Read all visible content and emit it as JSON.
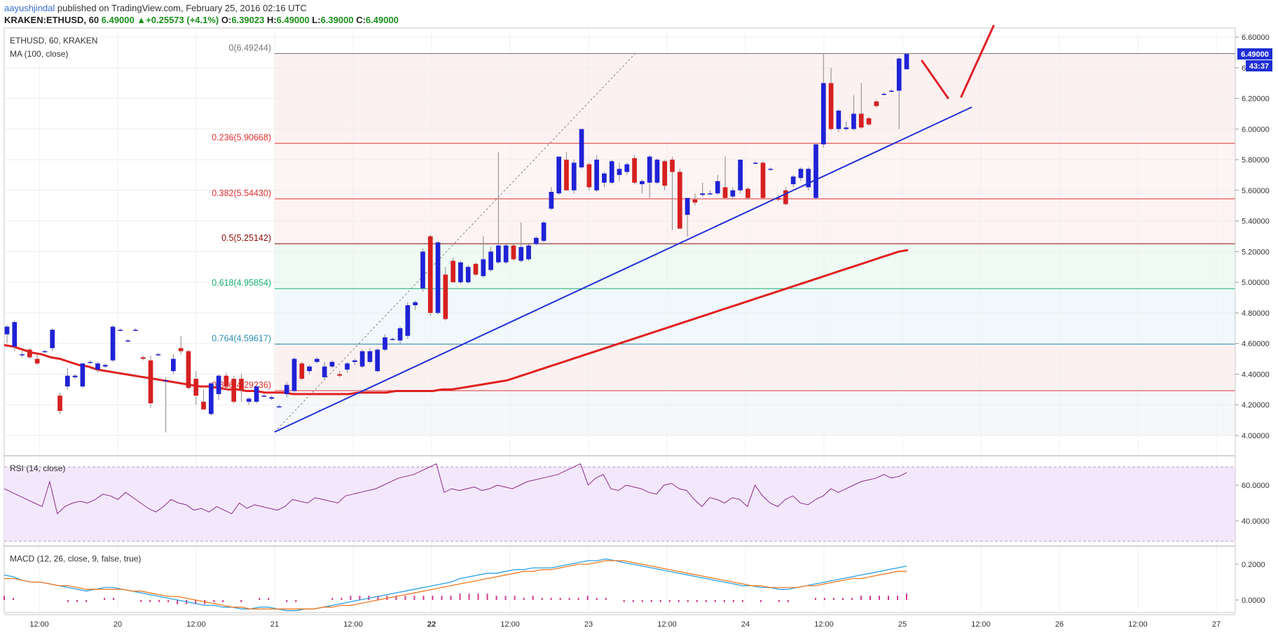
{
  "header": {
    "user": "aayushjindal",
    "published": "published on TradingView.com, February 25, 2016 02:16 UTC",
    "symbol": "KRAKEN:ETHUSD, 60",
    "change": "6.49000 ▲+0.25573 (+4.1%)",
    "ohlc_o_label": "O:",
    "ohlc_o": "6.39023",
    "ohlc_h_label": "H:",
    "ohlc_h": "6.49000",
    "ohlc_l_label": "L:",
    "ohlc_l": "6.39000",
    "ohlc_c_label": "C:",
    "ohlc_c": "6.49000"
  },
  "panes": {
    "main_title": "ETHUSD, 60, KRAKEN",
    "ma_title": "MA (100, close)",
    "rsi_title": "RSI (14, close)",
    "macd_title": "MACD (12, 26, close, 9, false, true)"
  },
  "price_badge": "6.49000",
  "time_badge": "43:37",
  "colors": {
    "up": "#1f22d6",
    "down": "#d62020",
    "ma": "#e02020",
    "trendline": "#1f2fd6",
    "rsi": "#8a2a8a",
    "macd": "#2aa0e8",
    "signal": "#f07820",
    "hist": "#d43a8e"
  },
  "chart_data": {
    "type": "candlestick",
    "price_axis_ticks": [
      "6.60000",
      "6.40000",
      "6.20000",
      "6.00000",
      "5.80000",
      "5.60000",
      "5.40000",
      "5.20000",
      "5.00000",
      "4.80000",
      "4.60000",
      "4.40000",
      "4.20000",
      "4.00000"
    ],
    "rsi_axis_ticks": [
      "60.0000",
      "40.0000"
    ],
    "macd_axis_ticks": [
      "0.2000",
      "0.0000"
    ],
    "time_axis_labels": [
      "12:00",
      "20",
      "12:00",
      "21",
      "12:00",
      "22",
      "12:00",
      "23",
      "12:00",
      "24",
      "12:00",
      "25",
      "12:00",
      "26",
      "12:00",
      "27"
    ],
    "fib_levels": [
      {
        "label": "0(6.49244)",
        "value": 6.49244,
        "color": "#777777"
      },
      {
        "label": "0.236(5.90668)",
        "value": 5.90668,
        "color": "#e03030"
      },
      {
        "label": "0.382(5.54430)",
        "value": 5.5443,
        "color": "#e03030"
      },
      {
        "label": "0.5(5.25142)",
        "value": 5.25142,
        "color": "#8a0a0a"
      },
      {
        "label": "0.618(4.95854)",
        "value": 4.95854,
        "color": "#18b070"
      },
      {
        "label": "0.764(4.59617)",
        "value": 4.59617,
        "color": "#2a8fb0"
      },
      {
        "label": "0.886(4.29236)",
        "value": 4.29236,
        "color": "#e03030"
      }
    ],
    "candles": [
      {
        "o": 4.66,
        "h": 4.72,
        "l": 4.6,
        "c": 4.71
      },
      {
        "o": 4.58,
        "h": 4.75,
        "l": 4.55,
        "c": 4.74
      },
      {
        "o": 4.53,
        "h": 4.56,
        "l": 4.51,
        "c": 4.53
      },
      {
        "o": 4.56,
        "h": 4.57,
        "l": 4.5,
        "c": 4.51
      },
      {
        "o": 4.5,
        "h": 4.53,
        "l": 4.46,
        "c": 4.47
      },
      {
        "o": 4.55,
        "h": 4.56,
        "l": 4.54,
        "c": 4.55
      },
      {
        "o": 4.57,
        "h": 4.7,
        "l": 4.55,
        "c": 4.69
      },
      {
        "o": 4.26,
        "h": 4.28,
        "l": 4.14,
        "c": 4.16
      },
      {
        "o": 4.32,
        "h": 4.44,
        "l": 4.3,
        "c": 4.39
      },
      {
        "o": 4.38,
        "h": 4.4,
        "l": 4.37,
        "c": 4.39
      },
      {
        "o": 4.32,
        "h": 4.47,
        "l": 4.31,
        "c": 4.47
      },
      {
        "o": 4.48,
        "h": 4.49,
        "l": 4.47,
        "c": 4.48
      },
      {
        "o": 4.43,
        "h": 4.48,
        "l": 4.41,
        "c": 4.47
      },
      {
        "o": 4.45,
        "h": 4.47,
        "l": 4.44,
        "c": 4.46
      },
      {
        "o": 4.49,
        "h": 4.72,
        "l": 4.48,
        "c": 4.71
      },
      {
        "o": 4.69,
        "h": 4.7,
        "l": 4.68,
        "c": 4.69
      },
      {
        "o": 4.62,
        "h": 4.63,
        "l": 4.61,
        "c": 4.62
      },
      {
        "o": 4.69,
        "h": 4.7,
        "l": 4.68,
        "c": 4.69
      },
      {
        "o": 4.51,
        "h": 4.52,
        "l": 4.49,
        "c": 4.5
      },
      {
        "o": 4.49,
        "h": 4.52,
        "l": 4.18,
        "c": 4.21
      },
      {
        "o": 4.53,
        "h": 4.54,
        "l": 4.52,
        "c": 4.53
      },
      {
        "o": 4.36,
        "h": 4.38,
        "l": 4.02,
        "c": 4.36
      },
      {
        "o": 4.42,
        "h": 4.53,
        "l": 4.4,
        "c": 4.5
      },
      {
        "o": 4.57,
        "h": 4.65,
        "l": 4.53,
        "c": 4.55
      },
      {
        "o": 4.55,
        "h": 4.56,
        "l": 4.3,
        "c": 4.31
      },
      {
        "o": 4.37,
        "h": 4.42,
        "l": 4.2,
        "c": 4.26
      },
      {
        "o": 4.22,
        "h": 4.3,
        "l": 4.17,
        "c": 4.17
      },
      {
        "o": 4.14,
        "h": 4.35,
        "l": 4.13,
        "c": 4.34
      },
      {
        "o": 4.27,
        "h": 4.4,
        "l": 4.23,
        "c": 4.39
      },
      {
        "o": 4.39,
        "h": 4.41,
        "l": 4.3,
        "c": 4.32
      },
      {
        "o": 4.37,
        "h": 4.39,
        "l": 4.21,
        "c": 4.22
      },
      {
        "o": 4.37,
        "h": 4.4,
        "l": 4.22,
        "c": 4.3
      },
      {
        "o": 4.22,
        "h": 4.25,
        "l": 4.2,
        "c": 4.24
      },
      {
        "o": 4.22,
        "h": 4.33,
        "l": 4.21,
        "c": 4.32
      },
      {
        "o": 4.26,
        "h": 4.27,
        "l": 4.25,
        "c": 4.26
      },
      {
        "o": 4.24,
        "h": 4.26,
        "l": 4.23,
        "c": 4.25
      },
      {
        "o": 4.19,
        "h": 4.2,
        "l": 4.18,
        "c": 4.19
      },
      {
        "o": 4.27,
        "h": 4.35,
        "l": 4.25,
        "c": 4.33
      },
      {
        "o": 4.29,
        "h": 4.51,
        "l": 4.28,
        "c": 4.5
      },
      {
        "o": 4.47,
        "h": 4.48,
        "l": 4.36,
        "c": 4.37
      },
      {
        "o": 4.42,
        "h": 4.46,
        "l": 4.4,
        "c": 4.45
      },
      {
        "o": 4.48,
        "h": 4.51,
        "l": 4.47,
        "c": 4.5
      },
      {
        "o": 4.38,
        "h": 4.48,
        "l": 4.37,
        "c": 4.45
      },
      {
        "o": 4.45,
        "h": 4.49,
        "l": 4.44,
        "c": 4.48
      },
      {
        "o": 4.4,
        "h": 4.42,
        "l": 4.38,
        "c": 4.39
      },
      {
        "o": 4.43,
        "h": 4.48,
        "l": 4.41,
        "c": 4.47
      },
      {
        "o": 4.48,
        "h": 4.5,
        "l": 4.46,
        "c": 4.49
      },
      {
        "o": 4.45,
        "h": 4.56,
        "l": 4.44,
        "c": 4.55
      },
      {
        "o": 4.48,
        "h": 4.57,
        "l": 4.47,
        "c": 4.55
      },
      {
        "o": 4.42,
        "h": 4.57,
        "l": 4.41,
        "c": 4.56
      },
      {
        "o": 4.56,
        "h": 4.66,
        "l": 4.55,
        "c": 4.64
      },
      {
        "o": 4.63,
        "h": 4.64,
        "l": 4.62,
        "c": 4.63
      },
      {
        "o": 4.62,
        "h": 4.71,
        "l": 4.6,
        "c": 4.7
      },
      {
        "o": 4.65,
        "h": 4.87,
        "l": 4.63,
        "c": 4.85
      },
      {
        "o": 4.85,
        "h": 4.88,
        "l": 4.82,
        "c": 4.87
      },
      {
        "o": 4.96,
        "h": 5.22,
        "l": 4.94,
        "c": 5.2
      },
      {
        "o": 5.3,
        "h": 5.31,
        "l": 4.78,
        "c": 4.8
      },
      {
        "o": 4.8,
        "h": 5.27,
        "l": 4.79,
        "c": 5.26
      },
      {
        "o": 5.05,
        "h": 5.1,
        "l": 4.75,
        "c": 4.76
      },
      {
        "o": 5.14,
        "h": 5.16,
        "l": 5.0,
        "c": 5.0
      },
      {
        "o": 5.0,
        "h": 5.14,
        "l": 4.99,
        "c": 5.13
      },
      {
        "o": 5.0,
        "h": 5.11,
        "l": 4.99,
        "c": 5.1
      },
      {
        "o": 5.12,
        "h": 5.13,
        "l": 5.04,
        "c": 5.05
      },
      {
        "o": 5.04,
        "h": 5.3,
        "l": 5.03,
        "c": 5.15
      },
      {
        "o": 5.08,
        "h": 5.23,
        "l": 5.07,
        "c": 5.2
      },
      {
        "o": 5.13,
        "h": 5.85,
        "l": 5.12,
        "c": 5.24
      },
      {
        "o": 5.13,
        "h": 5.25,
        "l": 5.12,
        "c": 5.24
      },
      {
        "o": 5.24,
        "h": 5.25,
        "l": 5.14,
        "c": 5.15
      },
      {
        "o": 5.14,
        "h": 5.39,
        "l": 5.13,
        "c": 5.23
      },
      {
        "o": 5.15,
        "h": 5.25,
        "l": 5.14,
        "c": 5.24
      },
      {
        "o": 5.25,
        "h": 5.3,
        "l": 5.24,
        "c": 5.29
      },
      {
        "o": 5.27,
        "h": 5.4,
        "l": 5.26,
        "c": 5.39
      },
      {
        "o": 5.48,
        "h": 5.62,
        "l": 5.47,
        "c": 5.59
      },
      {
        "o": 5.58,
        "h": 5.82,
        "l": 5.57,
        "c": 5.82
      },
      {
        "o": 5.8,
        "h": 5.85,
        "l": 5.6,
        "c": 5.6
      },
      {
        "o": 5.6,
        "h": 5.8,
        "l": 5.58,
        "c": 5.78
      },
      {
        "o": 5.75,
        "h": 6.0,
        "l": 5.74,
        "c": 6.0
      },
      {
        "o": 5.77,
        "h": 5.78,
        "l": 5.6,
        "c": 5.62
      },
      {
        "o": 5.6,
        "h": 5.83,
        "l": 5.59,
        "c": 5.8
      },
      {
        "o": 5.65,
        "h": 5.72,
        "l": 5.62,
        "c": 5.71
      },
      {
        "o": 5.65,
        "h": 5.8,
        "l": 5.64,
        "c": 5.79
      },
      {
        "o": 5.7,
        "h": 5.78,
        "l": 5.66,
        "c": 5.74
      },
      {
        "o": 5.72,
        "h": 5.78,
        "l": 5.7,
        "c": 5.77
      },
      {
        "o": 5.81,
        "h": 5.83,
        "l": 5.64,
        "c": 5.65
      },
      {
        "o": 5.64,
        "h": 5.67,
        "l": 5.58,
        "c": 5.66
      },
      {
        "o": 5.65,
        "h": 5.83,
        "l": 5.55,
        "c": 5.82
      },
      {
        "o": 5.65,
        "h": 5.81,
        "l": 5.64,
        "c": 5.8
      },
      {
        "o": 5.79,
        "h": 5.8,
        "l": 5.6,
        "c": 5.63
      },
      {
        "o": 5.8,
        "h": 5.82,
        "l": 5.34,
        "c": 5.72
      },
      {
        "o": 5.72,
        "h": 5.74,
        "l": 5.35,
        "c": 5.35
      },
      {
        "o": 5.44,
        "h": 5.55,
        "l": 5.3,
        "c": 5.55
      },
      {
        "o": 5.54,
        "h": 5.58,
        "l": 5.5,
        "c": 5.52
      },
      {
        "o": 5.57,
        "h": 5.65,
        "l": 5.56,
        "c": 5.58
      },
      {
        "o": 5.58,
        "h": 5.6,
        "l": 5.57,
        "c": 5.58
      },
      {
        "o": 5.58,
        "h": 5.7,
        "l": 5.57,
        "c": 5.66
      },
      {
        "o": 5.62,
        "h": 5.82,
        "l": 5.55,
        "c": 5.55
      },
      {
        "o": 5.56,
        "h": 5.62,
        "l": 5.54,
        "c": 5.6
      },
      {
        "o": 5.6,
        "h": 5.8,
        "l": 5.58,
        "c": 5.8
      },
      {
        "o": 5.61,
        "h": 5.62,
        "l": 5.54,
        "c": 5.55
      },
      {
        "o": 5.78,
        "h": 5.79,
        "l": 5.77,
        "c": 5.78
      },
      {
        "o": 5.78,
        "h": 5.79,
        "l": 5.55,
        "c": 5.55
      },
      {
        "o": 5.74,
        "h": 5.75,
        "l": 5.73,
        "c": 5.74
      },
      {
        "o": 5.55,
        "h": 5.57,
        "l": 5.53,
        "c": 5.54
      },
      {
        "o": 5.6,
        "h": 5.62,
        "l": 5.5,
        "c": 5.51
      },
      {
        "o": 5.64,
        "h": 5.7,
        "l": 5.62,
        "c": 5.69
      },
      {
        "o": 5.68,
        "h": 5.75,
        "l": 5.66,
        "c": 5.74
      },
      {
        "o": 5.62,
        "h": 5.75,
        "l": 5.6,
        "c": 5.74
      },
      {
        "o": 5.55,
        "h": 5.9,
        "l": 5.54,
        "c": 5.9
      },
      {
        "o": 5.9,
        "h": 6.49,
        "l": 5.88,
        "c": 6.3
      },
      {
        "o": 6.3,
        "h": 6.4,
        "l": 5.99,
        "c": 6.0
      },
      {
        "o": 6.0,
        "h": 6.13,
        "l": 5.98,
        "c": 6.12
      },
      {
        "o": 6.0,
        "h": 6.05,
        "l": 5.99,
        "c": 6.01
      },
      {
        "o": 6.0,
        "h": 6.22,
        "l": 5.99,
        "c": 6.1
      },
      {
        "o": 6.1,
        "h": 6.3,
        "l": 6.0,
        "c": 6.01
      },
      {
        "o": 6.07,
        "h": 6.08,
        "l": 6.02,
        "c": 6.03
      },
      {
        "o": 6.18,
        "h": 6.19,
        "l": 6.14,
        "c": 6.15
      },
      {
        "o": 6.23,
        "h": 6.24,
        "l": 6.22,
        "c": 6.23
      },
      {
        "o": 6.25,
        "h": 6.26,
        "l": 6.24,
        "c": 6.25
      },
      {
        "o": 6.25,
        "h": 6.47,
        "l": 6.0,
        "c": 6.46
      },
      {
        "o": 6.39,
        "h": 6.49,
        "l": 6.39,
        "c": 6.49
      }
    ],
    "ma_100": [
      4.59,
      4.58,
      4.56,
      4.54,
      4.53,
      4.51,
      4.5,
      4.48,
      4.46,
      4.45,
      4.43,
      4.42,
      4.41,
      4.4,
      4.39,
      4.38,
      4.37,
      4.36,
      4.35,
      4.34,
      4.33,
      4.32,
      4.32,
      4.31,
      4.3,
      4.3,
      4.29,
      4.29,
      4.28,
      4.28,
      4.28,
      4.27,
      4.27,
      4.27,
      4.27,
      4.27,
      4.27,
      4.27,
      4.28,
      4.28,
      4.28,
      4.28,
      4.29,
      4.29,
      4.29,
      4.29,
      4.29,
      4.3,
      4.3,
      4.31,
      4.32,
      4.33,
      4.34,
      4.35,
      4.36,
      4.38,
      4.4,
      4.42,
      4.44,
      4.46,
      4.48,
      4.5,
      4.52,
      4.54,
      4.56,
      4.58,
      4.6,
      4.62,
      4.64,
      4.66,
      4.68,
      4.7,
      4.72,
      4.74,
      4.76,
      4.78,
      4.8,
      4.82,
      4.84,
      4.86,
      4.88,
      4.9,
      4.92,
      4.94,
      4.96,
      4.98,
      5.0,
      5.02,
      5.04,
      5.06,
      5.08,
      5.1,
      5.12,
      5.14,
      5.16,
      5.18,
      5.2,
      5.21
    ],
    "rsi": [
      58,
      56,
      54,
      52,
      50,
      48,
      62,
      44,
      48,
      50,
      51,
      50,
      52,
      55,
      54,
      52,
      56,
      53,
      50,
      47,
      45,
      48,
      52,
      50,
      49,
      46,
      47,
      45,
      48,
      46,
      44,
      50,
      47,
      49,
      48,
      47,
      46,
      48,
      52,
      51,
      50,
      53,
      52,
      51,
      50,
      54,
      55,
      56,
      57,
      58,
      60,
      62,
      64,
      65,
      66,
      68,
      70,
      72,
      56,
      58,
      57,
      58,
      59,
      57,
      58,
      60,
      59,
      58,
      60,
      62,
      63,
      64,
      65,
      66,
      68,
      70,
      72,
      60,
      64,
      66,
      58,
      57,
      60,
      59,
      58,
      56,
      55,
      60,
      61,
      58,
      57,
      52,
      48,
      53,
      52,
      50,
      53,
      52,
      48,
      60,
      54,
      50,
      48,
      52,
      54,
      50,
      49,
      52,
      54,
      58,
      56,
      58,
      60,
      62,
      63,
      64,
      66,
      64,
      65,
      67
    ],
    "macd": [
      0.14,
      0.13,
      0.11,
      0.1,
      0.1,
      0.09,
      0.08,
      0.07,
      0.06,
      0.05,
      0.06,
      0.07,
      0.07,
      0.06,
      0.05,
      0.04,
      0.03,
      0.02,
      0.01,
      0.0,
      -0.01,
      -0.02,
      -0.03,
      -0.03,
      -0.04,
      -0.04,
      -0.05,
      -0.05,
      -0.04,
      -0.04,
      -0.05,
      -0.06,
      -0.06,
      -0.05,
      -0.05,
      -0.04,
      -0.03,
      -0.02,
      -0.01,
      0.0,
      0.01,
      0.02,
      0.03,
      0.04,
      0.05,
      0.06,
      0.07,
      0.08,
      0.09,
      0.1,
      0.12,
      0.13,
      0.14,
      0.15,
      0.15,
      0.16,
      0.17,
      0.17,
      0.18,
      0.18,
      0.18,
      0.19,
      0.2,
      0.21,
      0.22,
      0.22,
      0.23,
      0.22,
      0.21,
      0.2,
      0.19,
      0.18,
      0.17,
      0.16,
      0.15,
      0.14,
      0.13,
      0.12,
      0.11,
      0.1,
      0.09,
      0.08,
      0.08,
      0.07,
      0.07,
      0.06,
      0.06,
      0.07,
      0.08,
      0.09,
      0.1,
      0.11,
      0.12,
      0.13,
      0.14,
      0.15,
      0.16,
      0.17,
      0.18,
      0.19
    ],
    "signal": [
      0.12,
      0.12,
      0.11,
      0.1,
      0.1,
      0.09,
      0.08,
      0.08,
      0.07,
      0.06,
      0.06,
      0.06,
      0.06,
      0.06,
      0.05,
      0.05,
      0.04,
      0.03,
      0.02,
      0.02,
      0.01,
      0.0,
      -0.01,
      -0.02,
      -0.03,
      -0.04,
      -0.04,
      -0.05,
      -0.05,
      -0.05,
      -0.05,
      -0.05,
      -0.05,
      -0.05,
      -0.05,
      -0.04,
      -0.04,
      -0.03,
      -0.03,
      -0.02,
      -0.01,
      0.0,
      0.01,
      0.02,
      0.03,
      0.04,
      0.05,
      0.06,
      0.07,
      0.08,
      0.09,
      0.1,
      0.11,
      0.12,
      0.13,
      0.14,
      0.15,
      0.16,
      0.16,
      0.17,
      0.17,
      0.18,
      0.19,
      0.2,
      0.2,
      0.21,
      0.22,
      0.22,
      0.22,
      0.21,
      0.2,
      0.19,
      0.18,
      0.17,
      0.16,
      0.15,
      0.14,
      0.13,
      0.12,
      0.11,
      0.1,
      0.09,
      0.08,
      0.08,
      0.07,
      0.07,
      0.07,
      0.07,
      0.08,
      0.08,
      0.09,
      0.1,
      0.11,
      0.12,
      0.12,
      0.13,
      0.14,
      0.15,
      0.16,
      0.16
    ],
    "hist": [
      0.02,
      0.01,
      0.0,
      0.0,
      0.0,
      0.0,
      0.0,
      -0.01,
      -0.01,
      -0.01,
      0.0,
      0.01,
      0.01,
      0.0,
      0.0,
      -0.01,
      -0.01,
      -0.01,
      -0.01,
      -0.02,
      -0.02,
      -0.02,
      -0.02,
      -0.01,
      -0.01,
      0.0,
      -0.01,
      0.0,
      0.01,
      0.01,
      0.0,
      -0.01,
      -0.01,
      0.0,
      0.0,
      0.0,
      0.01,
      0.01,
      0.02,
      0.02,
      0.02,
      0.02,
      0.02,
      0.02,
      0.02,
      0.02,
      0.02,
      0.02,
      0.02,
      0.02,
      0.03,
      0.03,
      0.03,
      0.03,
      0.02,
      0.02,
      0.02,
      0.01,
      0.02,
      0.01,
      0.01,
      0.01,
      0.01,
      0.01,
      0.02,
      0.01,
      0.01,
      0.0,
      -0.01,
      -0.01,
      -0.01,
      -0.01,
      -0.01,
      -0.01,
      -0.01,
      -0.01,
      -0.01,
      -0.01,
      -0.01,
      -0.01,
      -0.01,
      -0.01,
      0.0,
      -0.01,
      0.0,
      -0.01,
      -0.01,
      0.0,
      0.0,
      0.01,
      0.01,
      0.01,
      0.01,
      0.01,
      0.02,
      0.02,
      0.02,
      0.02,
      0.02,
      0.03
    ]
  }
}
